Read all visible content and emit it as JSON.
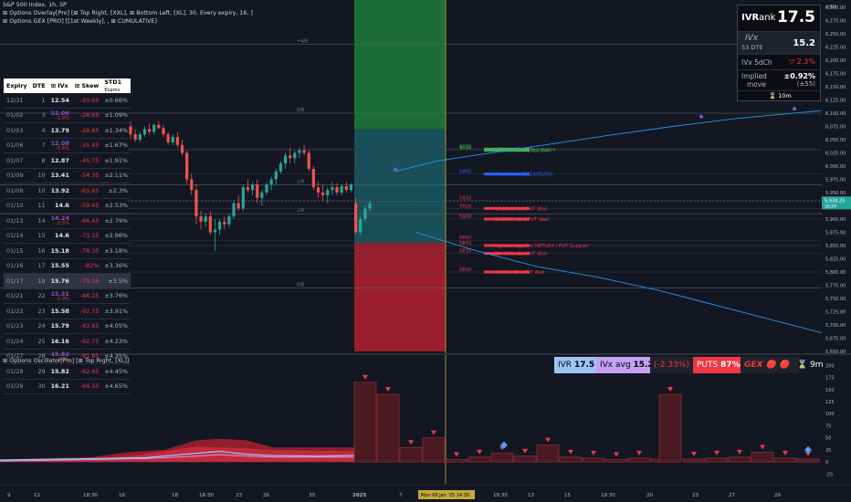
{
  "header": {
    "line1": "S&P 500 Index, 1h, SP",
    "line2": "⊞ Options Overlay[Pro] [⊞ Top Right, [XXL], ⊞ Bottom Left, [XL], 30, Every expiry, 16, ]",
    "line3": "⊞ Options GEX [PRO] [[1st Weekly], , ⊞ CUMULATIVE]"
  },
  "price_axis": {
    "currency": "USD",
    "ticks": [
      "6,300.00",
      "6,275.00",
      "6,250.00",
      "6,225.00",
      "6,200.00",
      "6,175.00",
      "6,150.00",
      "6,125.00",
      "6,100.00",
      "6,075.00",
      "6,050.00",
      "6,025.00",
      "6,000.00",
      "5,975.00",
      "5,950.00",
      "5,925.00",
      "5,900.00",
      "5,875.00",
      "5,850.00",
      "5,825.00",
      "5,800.00",
      "5,775.00",
      "5,750.00",
      "5,725.00",
      "5,700.00",
      "5,675.00",
      "5,650.00"
    ],
    "last_price": "5,934.25",
    "last_price_sub": "10:20"
  },
  "table": {
    "headers": [
      "Expiry",
      "DTE",
      "⊞ IVx",
      "⊞ Skew",
      "STD1"
    ],
    "header_sub": "Expmv",
    "rows": [
      {
        "expiry": "12/31",
        "dte": "1",
        "ivx": "12.54",
        "ivx_sub": "",
        "skew": "-20.65",
        "std": "±0.66%"
      },
      {
        "expiry": "01/02",
        "dte": "3",
        "ivx": "12.06",
        "ivx_sub": "-1.8%",
        "skew": "-28.65",
        "std": "±1.09%"
      },
      {
        "expiry": "01/03",
        "dte": "4",
        "ivx": "13.79",
        "ivx_sub": "",
        "skew": "-28.85",
        "std": "±1.34%"
      },
      {
        "expiry": "01/06",
        "dte": "7",
        "ivx": "12.08",
        "ivx_sub": "-5.6%",
        "skew": "-35.45",
        "std": "±1.67%"
      },
      {
        "expiry": "01/07",
        "dte": "8",
        "ivx": "12.87",
        "ivx_sub": "",
        "skew": "-46.75",
        "std": "±1.91%"
      },
      {
        "expiry": "01/09",
        "dte": "10",
        "ivx": "13.41",
        "ivx_sub": "",
        "skew": "-54.35",
        "std": "±2.11%"
      },
      {
        "expiry": "01/09",
        "dte": "10",
        "ivx": "13.92",
        "ivx_sub": "",
        "skew": "-65.65",
        "std": "±2.3%"
      },
      {
        "expiry": "01/10",
        "dte": "11",
        "ivx": "14.6",
        "ivx_sub": "",
        "skew": "-59.45",
        "std": "±2.53%"
      },
      {
        "expiry": "01/13",
        "dte": "14",
        "ivx": "14.24",
        "ivx_sub": "-2.5%",
        "skew": "-66.45",
        "std": "±2.79%"
      },
      {
        "expiry": "01/14",
        "dte": "15",
        "ivx": "14.6",
        "ivx_sub": "",
        "skew": "-73.15",
        "std": "±2.96%"
      },
      {
        "expiry": "01/15",
        "dte": "16",
        "ivx": "15.18",
        "ivx_sub": "",
        "skew": "-78.35",
        "std": "±3.18%"
      },
      {
        "expiry": "01/16",
        "dte": "17",
        "ivx": "15.55",
        "ivx_sub": "",
        "skew": "-82%",
        "std": "±3.36%"
      },
      {
        "expiry": "01/17",
        "dte": "18",
        "ivx": "15.76",
        "ivx_sub": "",
        "skew": "-79.15",
        "std": "±3.5%"
      },
      {
        "expiry": "01/21",
        "dte": "22",
        "ivx": "15.31",
        "ivx_sub": "-2.9%",
        "skew": "-88.25",
        "std": "±3.76%"
      },
      {
        "expiry": "01/22",
        "dte": "23",
        "ivx": "15.58",
        "ivx_sub": "",
        "skew": "-92.75",
        "std": "±3.91%"
      },
      {
        "expiry": "01/23",
        "dte": "24",
        "ivx": "15.79",
        "ivx_sub": "",
        "skew": "-93.85",
        "std": "±4.05%"
      },
      {
        "expiry": "01/24",
        "dte": "25",
        "ivx": "16.16",
        "ivx_sub": "",
        "skew": "-92.75",
        "std": "±4.23%"
      },
      {
        "expiry": "01/27",
        "dte": "28",
        "ivx": "15.82",
        "ivx_sub": "-2.9%",
        "skew": "-91.85",
        "std": "±4.35%"
      },
      {
        "expiry": "01/28",
        "dte": "29",
        "ivx": "15.82",
        "ivx_sub": "",
        "skew": "-92.45",
        "std": "±4.45%"
      },
      {
        "expiry": "01/29",
        "dte": "30",
        "ivx": "16.21",
        "ivx_sub": "",
        "skew": "-94.55",
        "std": "±4.65%"
      }
    ]
  },
  "ivr_panel": {
    "ivrank_label_a": "IVR",
    "ivrank_label_b": "ank",
    "ivrank_value": "17.5",
    "ivx_label": "IVx",
    "ivx_dte": "53 DTE",
    "ivx_value": "15.2",
    "ivx5d_label": "IVx 5dCh",
    "ivx5d_value": "▽ 2.3%",
    "implied_label_1": "Implied",
    "implied_label_2": "move",
    "implied_value": "±0.92%",
    "implied_sub": "(±55)",
    "footer": "⌛ 10m"
  },
  "gex_labels": [
    {
      "y": 6032,
      "text": "6032",
      "label": "+35.4% / CALL Resistance",
      "color": "#4caf50"
    },
    {
      "y": 6030,
      "text": "6030",
      "label": "+9.28% / 2nd CALL Wall",
      "color": "#4caf50"
    },
    {
      "y": 5985,
      "text": "5985",
      "label": "HVL  ⊻  Accu (2025/01/03)",
      "color": "#2962ff"
    },
    {
      "y": 5935,
      "text": "5935",
      "label": "",
      "color": "#f23645"
    },
    {
      "y": 5920,
      "text": "5920",
      "label": "-16.98% / 1st PUT Wall",
      "color": "#f23645"
    },
    {
      "y": 5900,
      "text": "5900",
      "label": "-10.28% / 2nd PUT Wall",
      "color": "#f23645"
    },
    {
      "y": 5860,
      "text": "5860",
      "label": "",
      "color": "#f23645"
    },
    {
      "y": 5850,
      "text": "5850",
      "label": "Highest negative NETGEX / PUT Support",
      "color": "#f23645"
    },
    {
      "y": 5835,
      "text": "5835",
      "label": "-10.48% / 1st PUT Wall",
      "color": "#f23645"
    },
    {
      "y": 5800,
      "text": "5800",
      "label": "-8.50% / 3rd PUT Wall",
      "color": "#f23645"
    }
  ],
  "std_lines": [
    {
      "label": "+4/8",
      "y": 6230
    },
    {
      "label": "0/8",
      "y": 6100
    },
    {
      "label": "1/8",
      "y": 5965
    },
    {
      "label": "2/8",
      "y": 5910
    },
    {
      "label": "0/8",
      "y": 5770
    }
  ],
  "oscillator": {
    "title": "⊞ Options Oscillator[Pro] [⊞ Top Right, [XL]]",
    "ivr_label": "IVR",
    "ivr_value": "17.5",
    "ivx_avg_label": "IVx avg",
    "ivx_avg_value": "15.2",
    "ivx_change": "(-2.33%)",
    "puts_label": "PUTS",
    "puts_value": "87%",
    "gex_label": "GEX",
    "timer": "⌛ 9m",
    "axis_ticks": [
      "200",
      "175",
      "150",
      "125",
      "100",
      "75",
      "50",
      "25",
      "0",
      "-25"
    ]
  },
  "time_axis": {
    "ticks": [
      "9",
      "11",
      "18:30",
      "16",
      "18",
      "18:30",
      "23",
      "26",
      "30",
      "2025",
      "7",
      "8",
      "18:30",
      "13",
      "15",
      "18:30",
      "20",
      "23",
      "27",
      "29"
    ],
    "crosshair_label": "Mon 06 Jan '25   14:30"
  },
  "colors": {
    "bg": "#131722",
    "up": "#26a69a",
    "down": "#ef5350",
    "green_zone": "#1e7c3a",
    "red_zone": "#b3202e",
    "crosshair": "#c5a93a",
    "hvl": "#2196f3"
  },
  "chart_data": {
    "type": "candlestick",
    "title": "S&P 500 Index, 1h, SP",
    "ylim": [
      5650,
      6300
    ],
    "candles": [
      [
        6075,
        6085,
        6050,
        6060
      ],
      [
        6060,
        6070,
        6045,
        6050
      ],
      [
        6050,
        6065,
        6045,
        6060
      ],
      [
        6060,
        6075,
        6055,
        6070
      ],
      [
        6070,
        6080,
        6060,
        6065
      ],
      [
        6065,
        6080,
        6060,
        6078
      ],
      [
        6078,
        6085,
        6070,
        6072
      ],
      [
        6072,
        6078,
        6055,
        6060
      ],
      [
        6060,
        6065,
        6040,
        6045
      ],
      [
        6045,
        6060,
        6040,
        6055
      ],
      [
        6055,
        6065,
        6035,
        6040
      ],
      [
        6040,
        6050,
        6020,
        6025
      ],
      [
        6025,
        6030,
        5965,
        5975
      ],
      [
        5975,
        5985,
        5945,
        5955
      ],
      [
        5955,
        5965,
        5890,
        5905
      ],
      [
        5905,
        5915,
        5880,
        5895
      ],
      [
        5895,
        5910,
        5885,
        5905
      ],
      [
        5905,
        5915,
        5870,
        5875
      ],
      [
        5875,
        5900,
        5840,
        5880
      ],
      [
        5880,
        5900,
        5870,
        5895
      ],
      [
        5895,
        5905,
        5880,
        5890
      ],
      [
        5890,
        5910,
        5885,
        5905
      ],
      [
        5905,
        5935,
        5900,
        5930
      ],
      [
        5930,
        5945,
        5915,
        5920
      ],
      [
        5920,
        5965,
        5915,
        5960
      ],
      [
        5960,
        5975,
        5950,
        5955
      ],
      [
        5955,
        5970,
        5945,
        5965
      ],
      [
        5965,
        5975,
        5930,
        5940
      ],
      [
        5940,
        5955,
        5925,
        5950
      ],
      [
        5950,
        5970,
        5945,
        5965
      ],
      [
        5965,
        5980,
        5955,
        5975
      ],
      [
        5975,
        5995,
        5965,
        5990
      ],
      [
        5990,
        6010,
        5985,
        6005
      ],
      [
        6005,
        6025,
        5995,
        6020
      ],
      [
        6020,
        6035,
        6005,
        6015
      ],
      [
        6015,
        6030,
        6005,
        6025
      ],
      [
        6025,
        6035,
        6015,
        6030
      ],
      [
        6030,
        6040,
        6020,
        6025
      ],
      [
        6025,
        6030,
        5990,
        5995
      ],
      [
        5995,
        6000,
        5955,
        5960
      ],
      [
        5960,
        5970,
        5940,
        5950
      ],
      [
        5950,
        5965,
        5935,
        5945
      ],
      [
        5945,
        5960,
        5930,
        5955
      ],
      [
        5955,
        5970,
        5945,
        5960
      ],
      [
        5960,
        5968,
        5945,
        5950
      ],
      [
        5950,
        5965,
        5945,
        5962
      ],
      [
        5962,
        5970,
        5950,
        5955
      ],
      [
        5955,
        5968,
        5950,
        5965
      ],
      [
        5930,
        5940,
        5870,
        5875
      ],
      [
        5875,
        5905,
        5870,
        5900
      ],
      [
        5900,
        5925,
        5895,
        5920
      ],
      [
        5920,
        5935,
        5915,
        5930
      ]
    ],
    "hvl_curve": [
      [
        0.0,
        5990
      ],
      [
        0.1,
        6010
      ],
      [
        0.2,
        6022
      ],
      [
        0.35,
        6040
      ],
      [
        0.5,
        6058
      ],
      [
        0.65,
        6075
      ],
      [
        0.8,
        6090
      ],
      [
        1.0,
        6105
      ]
    ],
    "put_curve": [
      [
        0.0,
        5875
      ],
      [
        0.15,
        5840
      ],
      [
        0.3,
        5810
      ],
      [
        0.45,
        5790
      ],
      [
        0.6,
        5765
      ],
      [
        0.75,
        5735
      ],
      [
        0.9,
        5705
      ],
      [
        1.0,
        5685
      ]
    ]
  }
}
